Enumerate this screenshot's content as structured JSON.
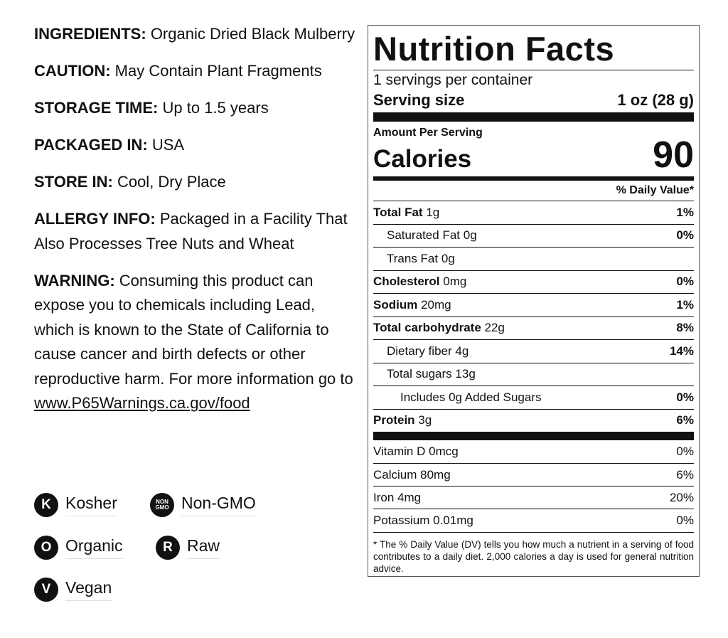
{
  "info": [
    {
      "label": "INGREDIENTS:",
      "text": "Organic Dried Black Mulberry"
    },
    {
      "label": "CAUTION:",
      "text": "May Contain Plant Fragments"
    },
    {
      "label": "STORAGE TIME:",
      "text": "Up to 1.5 years"
    },
    {
      "label": "PACKAGED IN:",
      "text": "USA"
    },
    {
      "label": "STORE IN:",
      "text": "Cool, Dry Place"
    },
    {
      "label": "ALLERGY INFO:",
      "text": "Packaged in a Facility That Also Processes Tree Nuts and Wheat"
    }
  ],
  "warning": {
    "label": "WARNING:",
    "text": "Consuming this product can expose you to chemicals including Lead, which is known to the State of California to cause cancer and birth defects or other reproductive harm. For more information go to",
    "link": "www.P65Warnings.ca.gov/food"
  },
  "badges": [
    {
      "icon": "K",
      "label": "Kosher"
    },
    {
      "icon": "NON GMO",
      "label": "Non-GMO"
    },
    {
      "icon": "O",
      "label": "Organic"
    },
    {
      "icon": "R",
      "label": "Raw"
    },
    {
      "icon": "V",
      "label": "Vegan"
    }
  ],
  "nutrition": {
    "title": "Nutrition Facts",
    "servings": "1 servings per container",
    "serving_size_label": "Serving size",
    "serving_size_value": "1 oz (28 g)",
    "amount_per_serving": "Amount Per Serving",
    "calories_label": "Calories",
    "calories_value": "90",
    "dv_header": "% Daily Value*",
    "rows": [
      {
        "name": "Total Fat",
        "amount": "1g",
        "dv": "1%"
      },
      {
        "name": "Saturated Fat",
        "amount": "0g",
        "dv": "0%"
      },
      {
        "name": "Trans Fat",
        "amount": "0g"
      },
      {
        "name": "Cholesterol",
        "amount": "0mg",
        "dv": "0%"
      },
      {
        "name": "Sodium",
        "amount": "20mg",
        "dv": "1%"
      },
      {
        "name": "Total carbohydrate",
        "amount": "22g",
        "dv": "8%"
      },
      {
        "name": "Dietary fiber",
        "amount": "4g",
        "dv": "14%"
      },
      {
        "name": "Total sugars",
        "amount": "13g"
      },
      {
        "name": "Includes",
        "amount": "0g Added Sugars",
        "dv": "0%"
      },
      {
        "name": "Protein",
        "amount": "3g",
        "dv": "6%"
      }
    ],
    "vitamins": [
      {
        "name": "Vitamin D",
        "amount": "0mcg",
        "dv": "0%"
      },
      {
        "name": "Calcium",
        "amount": "80mg",
        "dv": "6%"
      },
      {
        "name": "Iron",
        "amount": "4mg",
        "dv": "20%"
      },
      {
        "name": "Potassium",
        "amount": "0.01mg",
        "dv": "0%"
      }
    ],
    "footnote": "* The % Daily Value (DV) tells you how much a nutrient in a serving of food contributes to a daily diet. 2,000 calories a day is used for general nutrition advice."
  }
}
